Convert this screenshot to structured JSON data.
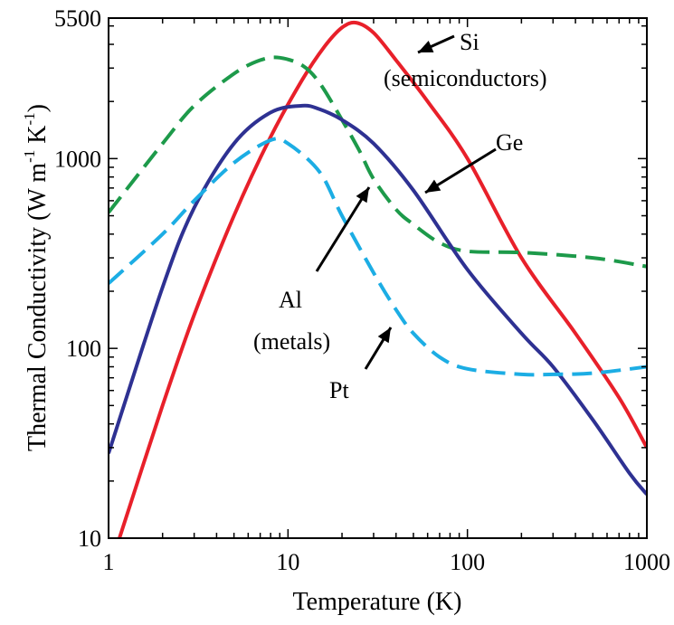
{
  "chart_data": {
    "type": "line",
    "xlabel": "Temperature (K)",
    "ylabel": {
      "main": "Thermal Conductivity (W m",
      "exp1": "-1",
      "mid": " K",
      "exp2": "-1",
      "close": ")"
    },
    "xscale": "log",
    "yscale": "log",
    "xlim": [
      1,
      1000
    ],
    "ylim": [
      10,
      5500
    ],
    "xticks": [
      {
        "value": 1,
        "label": "1"
      },
      {
        "value": 10,
        "label": "10"
      },
      {
        "value": 100,
        "label": "100"
      },
      {
        "value": 1000,
        "label": "1000"
      }
    ],
    "yticks": [
      {
        "value": 10,
        "label": "10"
      },
      {
        "value": 100,
        "label": "100"
      },
      {
        "value": 1000,
        "label": "1000"
      },
      {
        "value": 5500,
        "label": "5500"
      }
    ],
    "grid": false,
    "legend": "none",
    "series": [
      {
        "name": "Si",
        "color": "#e8202a",
        "style": "solid",
        "x": [
          1.15,
          2,
          3,
          5,
          8,
          12,
          16,
          20,
          24,
          30,
          40,
          60,
          100,
          200,
          400,
          700,
          1000
        ],
        "y": [
          10,
          50,
          150,
          500,
          1300,
          2600,
          3900,
          4900,
          5200,
          4600,
          3300,
          2000,
          1000,
          300,
          120,
          55,
          30
        ]
      },
      {
        "name": "Ge",
        "color": "#1d9a4a",
        "style": "dashed",
        "x": [
          1,
          2,
          3,
          5,
          7,
          9,
          12,
          15,
          20,
          25,
          30,
          40,
          50,
          70,
          100,
          200,
          500,
          1000
        ],
        "y": [
          520,
          1200,
          1900,
          2800,
          3300,
          3400,
          3100,
          2500,
          1600,
          1100,
          780,
          540,
          450,
          360,
          325,
          320,
          300,
          270
        ]
      },
      {
        "name": "Al",
        "color": "#2e3192",
        "style": "solid",
        "x": [
          1,
          2,
          3,
          5,
          8,
          12,
          15,
          20,
          30,
          50,
          100,
          200,
          300,
          500,
          800,
          1000
        ],
        "y": [
          28,
          210,
          550,
          1200,
          1750,
          1900,
          1820,
          1600,
          1200,
          680,
          260,
          120,
          80,
          42,
          22,
          17
        ]
      },
      {
        "name": "Pt",
        "color": "#1cade4",
        "style": "dashed",
        "x": [
          1,
          2,
          3,
          5,
          8,
          10,
          15,
          20,
          30,
          40,
          50,
          70,
          100,
          200,
          300,
          500,
          1000
        ],
        "y": [
          220,
          400,
          600,
          950,
          1250,
          1200,
          850,
          500,
          250,
          160,
          120,
          90,
          78,
          73,
          73,
          74,
          80
        ]
      }
    ],
    "annotations": [
      {
        "lines": [
          "Si",
          "(semiconductors)"
        ]
      },
      {
        "lines": [
          "Ge"
        ]
      },
      {
        "lines": [
          "Al",
          "(metals)"
        ]
      },
      {
        "lines": [
          "Pt"
        ]
      }
    ]
  }
}
